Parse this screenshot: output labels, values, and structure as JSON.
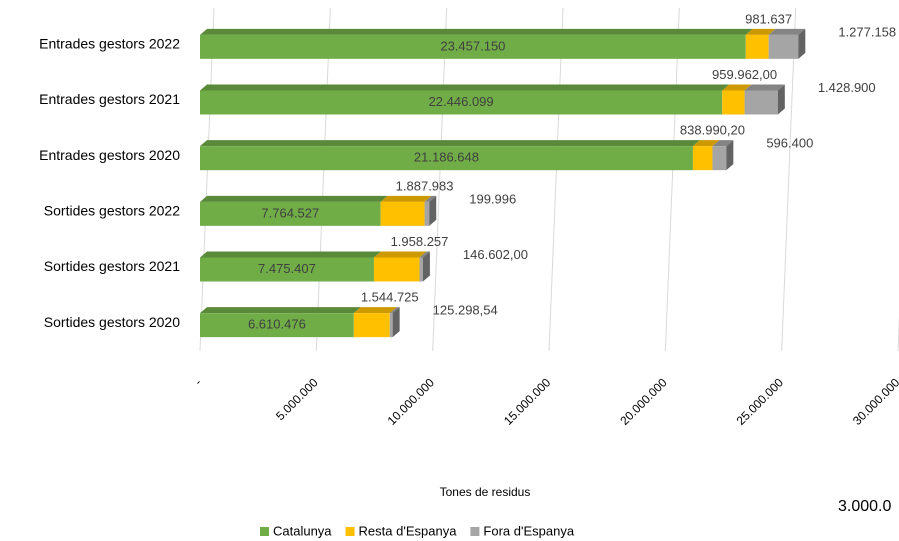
{
  "chart_data": {
    "type": "bar",
    "categories": [
      "Entrades gestors 2022",
      "Entrades gestors 2021",
      "Entrades gestors 2020",
      "Sortides gestors 2022",
      "Sortides gestors 2021",
      "Sortides gestors 2020"
    ],
    "series": [
      {
        "name": "Catalunya",
        "color": "#70ad47",
        "values": [
          23457150,
          22446099,
          21186648,
          7764527,
          7475407,
          6610476
        ],
        "value_labels": [
          "23.457.150",
          "22.446.099",
          "21.186.648",
          "7.764.527",
          "7.475.407",
          "6.610.476"
        ]
      },
      {
        "name": "Resta d'Espanya",
        "color": "#ffc000",
        "values": [
          981637,
          959962,
          838990.2,
          1887983,
          1958257,
          1544725
        ],
        "value_labels": [
          "981.637",
          "959.962,00",
          "838.990,20",
          "1.887.983",
          "1.958.257",
          "1.544.725"
        ]
      },
      {
        "name": "Fora d'Espanya",
        "color": "#a5a5a5",
        "values": [
          1277158,
          1428900,
          596400,
          199996,
          146602,
          125298.54
        ],
        "value_labels": [
          "1.277.158",
          "1.428.900",
          "596.400",
          "199.996",
          "146.602,00",
          "125.298,54"
        ]
      }
    ],
    "xlim": [
      0,
      30000000
    ],
    "xticks": [
      {
        "value": 0,
        "label": "-"
      },
      {
        "value": 5000000,
        "label": "5.000.000"
      },
      {
        "value": 10000000,
        "label": "10.000.000"
      },
      {
        "value": 15000000,
        "label": "15.000.000"
      },
      {
        "value": 20000000,
        "label": "20.000.000"
      },
      {
        "value": 25000000,
        "label": "25.000.000"
      },
      {
        "value": 30000000,
        "label": "30.000.000"
      }
    ],
    "xlabel": "Tones de residus",
    "annotation": "3.000.0",
    "grid": true,
    "legend": "bottom"
  }
}
